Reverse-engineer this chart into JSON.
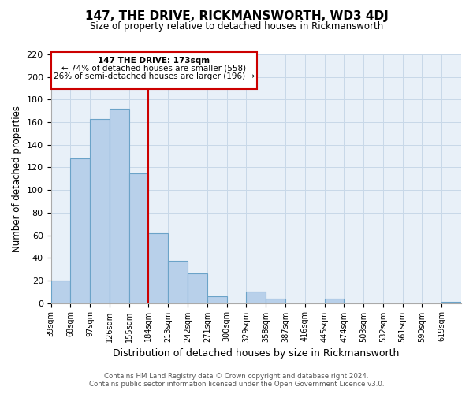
{
  "title": "147, THE DRIVE, RICKMANSWORTH, WD3 4DJ",
  "subtitle": "Size of property relative to detached houses in Rickmansworth",
  "xlabel": "Distribution of detached houses by size in Rickmansworth",
  "ylabel": "Number of detached properties",
  "footer_line1": "Contains HM Land Registry data © Crown copyright and database right 2024.",
  "footer_line2": "Contains public sector information licensed under the Open Government Licence v3.0.",
  "bin_labels": [
    "39sqm",
    "68sqm",
    "97sqm",
    "126sqm",
    "155sqm",
    "184sqm",
    "213sqm",
    "242sqm",
    "271sqm",
    "300sqm",
    "329sqm",
    "358sqm",
    "387sqm",
    "416sqm",
    "445sqm",
    "474sqm",
    "503sqm",
    "532sqm",
    "561sqm",
    "590sqm",
    "619sqm"
  ],
  "bar_values": [
    20,
    128,
    163,
    172,
    115,
    62,
    37,
    26,
    6,
    0,
    10,
    4,
    0,
    0,
    4,
    0,
    0,
    0,
    0,
    0,
    1
  ],
  "bar_color": "#b8d0ea",
  "bar_edge_color": "#6ba3c8",
  "property_line_label": "147 THE DRIVE: 173sqm",
  "annotation_smaller": "← 74% of detached houses are smaller (558)",
  "annotation_larger": "26% of semi-detached houses are larger (196) →",
  "annotation_box_color": "#ffffff",
  "annotation_box_edge": "#cc0000",
  "line_color": "#cc0000",
  "ylim": [
    0,
    220
  ],
  "yticks": [
    0,
    20,
    40,
    60,
    80,
    100,
    120,
    140,
    160,
    180,
    200,
    220
  ],
  "grid_color": "#c8d8e8",
  "background_color": "#ffffff",
  "fig_bg_color": "#e8f0f8"
}
